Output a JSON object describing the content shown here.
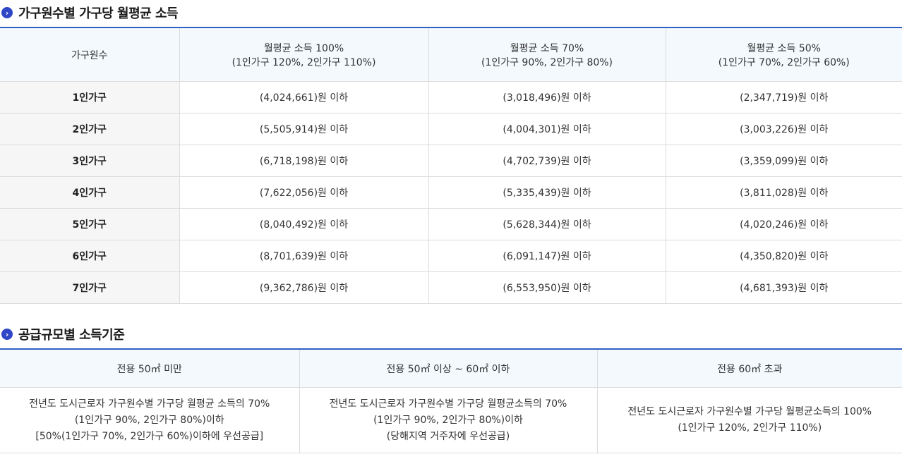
{
  "section1": {
    "title": "가구원수별 가구당 월평균 소득",
    "headers": [
      {
        "line1": "가구원수",
        "line2": ""
      },
      {
        "line1": "월평균 소득 100%",
        "line2": "(1인가구 120%, 2인가구 110%)"
      },
      {
        "line1": "월평균 소득 70%",
        "line2": "(1인가구 90%, 2인가구 80%)"
      },
      {
        "line1": "월평균 소득 50%",
        "line2": "(1인가구 70%, 2인가구 60%)"
      }
    ],
    "rows": [
      [
        "1인가구",
        "(4,024,661)원 이하",
        "(3,018,496)원 이하",
        "(2,347,719)원 이하"
      ],
      [
        "2인가구",
        "(5,505,914)원 이하",
        "(4,004,301)원 이하",
        "(3,003,226)원 이하"
      ],
      [
        "3인가구",
        "(6,718,198)원 이하",
        "(4,702,739)원 이하",
        "(3,359,099)원 이하"
      ],
      [
        "4인가구",
        "(7,622,056)원 이하",
        "(5,335,439)원 이하",
        "(3,811,028)원 이하"
      ],
      [
        "5인가구",
        "(8,040,492)원 이하",
        "(5,628,344)원 이하",
        "(4,020,246)원 이하"
      ],
      [
        "6인가구",
        "(8,701,639)원 이하",
        "(6,091,147)원 이하",
        "(4,350,820)원 이하"
      ],
      [
        "7인가구",
        "(9,362,786)원 이하",
        "(6,553,950)원 이하",
        "(4,681,393)원 이하"
      ]
    ]
  },
  "section2": {
    "title": "공급규모별 소득기준",
    "headers": [
      "전용 50㎡ 미만",
      "전용 50㎡ 이상 ~ 60㎡ 이하",
      "전용 60㎡ 초과"
    ],
    "cells": [
      [
        "전년도 도시근로자 가구원수별 가구당 월평균 소득의 70%",
        "(1인가구 90%, 2인가구 80%)이하",
        "[50%(1인가구 70%, 2인가구 60%)이하에 우선공급]"
      ],
      [
        "전년도 도시근로자 가구원수별 가구당 월평균소득의 70%",
        "(1인가구 90%, 2인가구 80%)이하",
        "(당해지역 거주자에 우선공급)"
      ],
      [
        "전년도 도시근로자 가구원수별 가구당 월평균소득의 100%",
        "(1인가구 120%, 2인가구 110%)"
      ]
    ]
  },
  "colors": {
    "accent": "#2f46c6",
    "border_top": "#2f5fc4",
    "header_bg": "#f3f9fd",
    "rowhead_bg": "#f6f6f6"
  },
  "icons": {
    "bullet": "chevron-right-circle-icon"
  }
}
